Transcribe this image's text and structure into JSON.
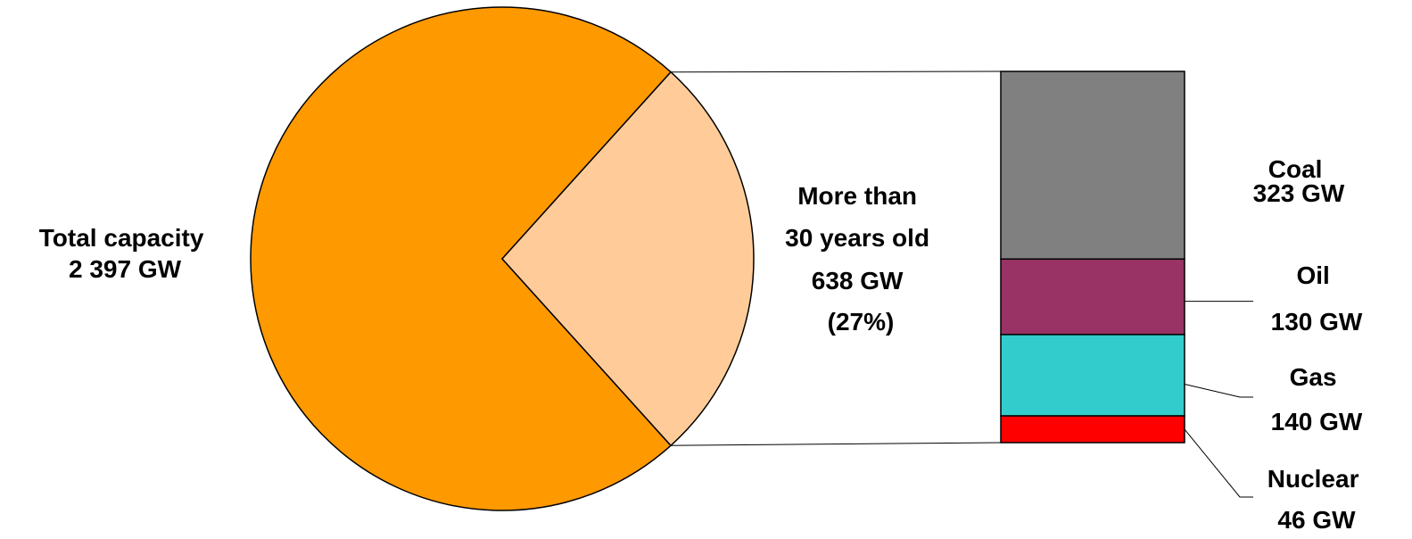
{
  "chart_data": {
    "type": "pie",
    "pie": {
      "slices": [
        {
          "label_lines": [
            "Total capacity",
            "2 397 GW"
          ],
          "value": 2397,
          "color": "#FF9900"
        },
        {
          "label_lines": [
            "More than",
            "30 years old",
            "638 GW",
            "(27%)"
          ],
          "value": 638,
          "percent": 27,
          "color": "#FFCC99"
        }
      ]
    },
    "breakdown": {
      "type": "stacked-bar",
      "unit": "GW",
      "segments": [
        {
          "name": "Coal",
          "value": 323,
          "value_label": "323 GW",
          "color": "#808080"
        },
        {
          "name": "Oil",
          "value": 130,
          "value_label": "130 GW",
          "color": "#993366"
        },
        {
          "name": "Gas",
          "value": 140,
          "value_label": "140 GW",
          "color": "#33CCCC"
        },
        {
          "name": "Nuclear",
          "value": 46,
          "value_label": "46 GW",
          "color": "#FF0000"
        }
      ]
    }
  }
}
